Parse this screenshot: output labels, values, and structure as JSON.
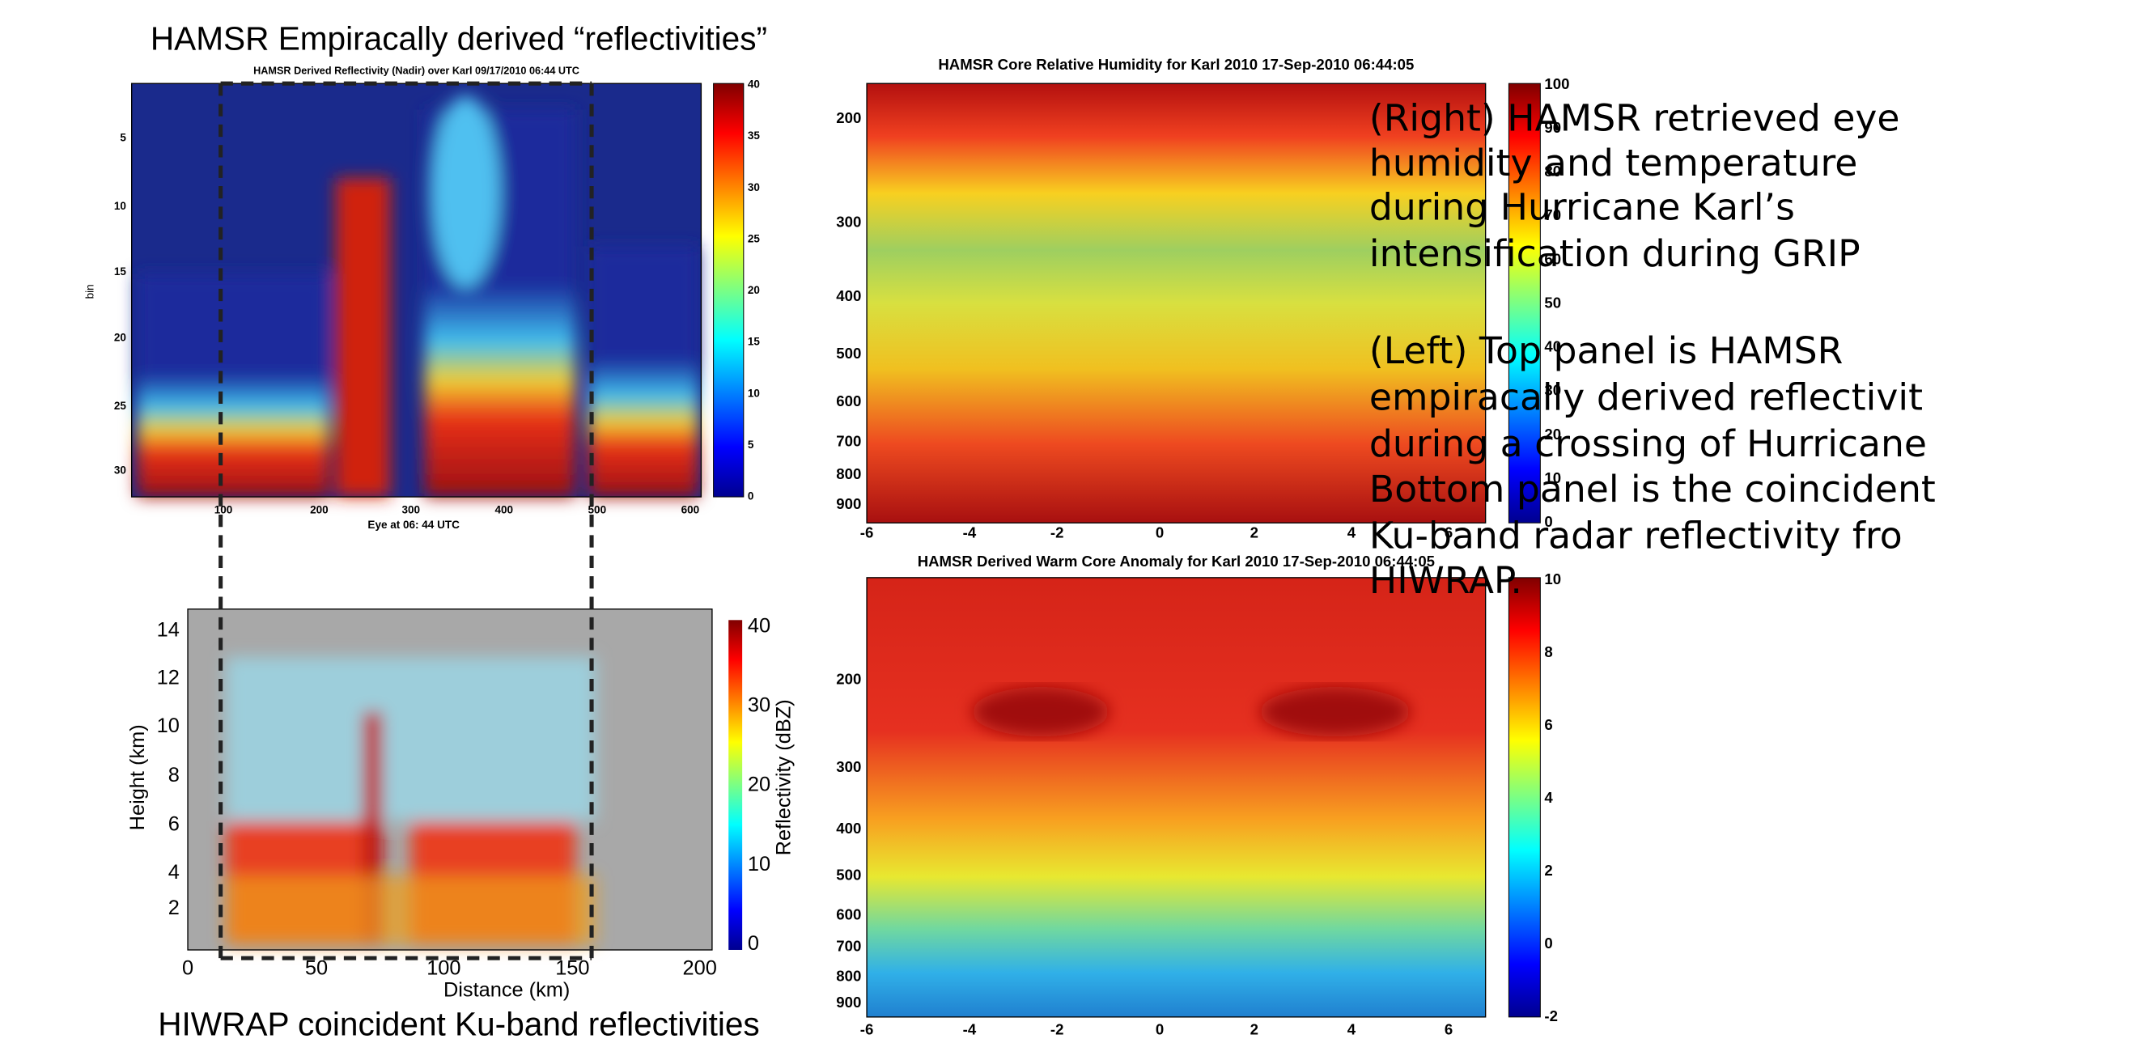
{
  "left_top": {
    "heading": "HAMSR Empiracally derived “reflectivities”",
    "title": "HAMSR Derived Reflectivity (Nadir) over Karl 09/17/2010   06:44 UTC",
    "y_label": "bin",
    "x_label": "Eye at 06: 44 UTC",
    "yticks": [
      5,
      10,
      15,
      20,
      25,
      30
    ],
    "xticks": [
      100,
      200,
      300,
      400,
      500,
      600
    ],
    "colorbar_ticks": [
      40,
      35,
      30,
      25,
      20,
      15,
      10,
      5,
      0
    ]
  },
  "left_bottom": {
    "y_label": "Height (km)",
    "x_label": "Distance (km)",
    "colorbar_label": "Reflectivity (dBZ)",
    "yticks": [
      14,
      12,
      10,
      8,
      6,
      4,
      2
    ],
    "xticks": [
      0,
      50,
      100,
      150,
      200
    ],
    "colorbar_ticks": [
      40,
      30,
      20,
      10,
      0
    ],
    "caption": "HIWRAP coincident Ku-band reflectivities"
  },
  "right_top": {
    "title": "HAMSR Core Relative Humidity for Karl 2010 17-Sep-2010 06:44:05",
    "yticks": [
      200,
      300,
      400,
      500,
      600,
      700,
      800,
      900
    ],
    "xticks": [
      -6,
      -4,
      -2,
      0,
      2,
      4,
      6
    ],
    "colorbar_ticks": [
      100,
      90,
      80,
      70,
      60,
      50,
      40,
      30,
      20,
      10,
      0
    ]
  },
  "right_bottom": {
    "title": "HAMSR Derived Warm Core Anomaly for Karl 2010 17-Sep-2010 06:44:05",
    "yticks": [
      200,
      300,
      400,
      500,
      600,
      700,
      800,
      900
    ],
    "xticks": [
      -6,
      -4,
      -2,
      0,
      2,
      4,
      6
    ],
    "colorbar_ticks": [
      10,
      8,
      6,
      4,
      2,
      0,
      -2
    ]
  },
  "notes": [
    [
      "(Right) HAMSR retrieved eye",
      "humidity and temperature",
      "during Hurricane Karl’s",
      "intensification during GRIP"
    ],
    [
      "(Left) Top panel is HAMSR",
      "empiracally derived reflectivit",
      "during a crossing of Hurricane",
      "Bottom panel is the coincident",
      "Ku-band radar reflectivity fro",
      "HIWRAP."
    ]
  ]
}
